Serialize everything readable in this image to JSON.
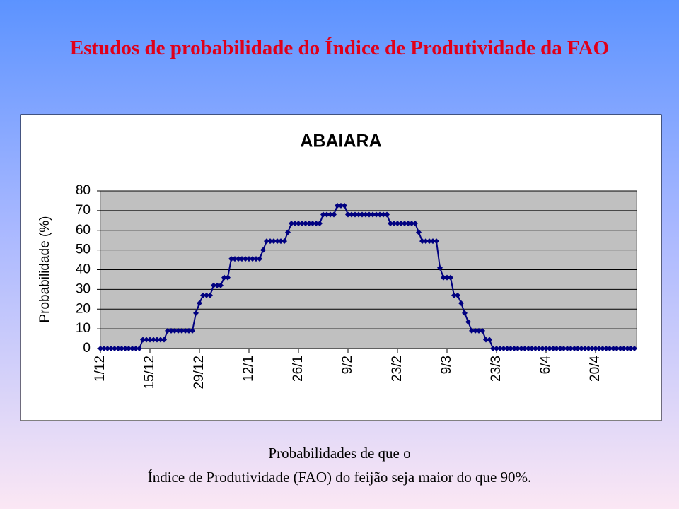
{
  "slide_title": "Estudos de probabilidade do Índice de Produtividade da FAO",
  "caption": [
    "Probabilidades de que o",
    "Índice de Produtividade (FAO) do feijão seja maior do que 90%."
  ],
  "chart_data": {
    "type": "line",
    "title": "ABAIARA",
    "y_label": "Probabilidade (%)",
    "categories": [
      "1/12",
      null,
      null,
      null,
      null,
      null,
      null,
      null,
      null,
      null,
      null,
      null,
      null,
      null,
      "15/12",
      null,
      null,
      null,
      null,
      null,
      null,
      null,
      null,
      null,
      null,
      null,
      null,
      null,
      "29/12",
      null,
      null,
      null,
      null,
      null,
      null,
      null,
      null,
      null,
      null,
      null,
      null,
      null,
      "12/1",
      null,
      null,
      null,
      null,
      null,
      null,
      null,
      null,
      null,
      null,
      null,
      null,
      null,
      "26/1",
      null,
      null,
      null,
      null,
      null,
      null,
      null,
      null,
      null,
      null,
      null,
      null,
      null,
      "9/2",
      null,
      null,
      null,
      null,
      null,
      null,
      null,
      null,
      null,
      null,
      null,
      null,
      null,
      "23/2",
      null,
      null,
      null,
      null,
      null,
      null,
      null,
      null,
      null,
      null,
      null,
      null,
      null,
      "9/3",
      null,
      null,
      null,
      null,
      null,
      null,
      null,
      null,
      null,
      null,
      null,
      null,
      null,
      "23/3",
      null,
      null,
      null,
      null,
      null,
      null,
      null,
      null,
      null,
      null,
      null,
      null,
      null,
      "6/4",
      null,
      null,
      null,
      null,
      null,
      null,
      null,
      null,
      null,
      null,
      null,
      null,
      null,
      "20/4",
      null,
      null,
      null,
      null,
      null,
      null,
      null,
      null,
      null,
      null,
      null
    ],
    "values": [
      0,
      0,
      0,
      0,
      0,
      0,
      0,
      0,
      0,
      0,
      0,
      0,
      4.5,
      4.5,
      4.5,
      4.5,
      4.5,
      4.5,
      4.5,
      9,
      9,
      9,
      9,
      9,
      9,
      9,
      9,
      18,
      23,
      27,
      27,
      27,
      32,
      32,
      32,
      36,
      36,
      45.5,
      45.5,
      45.5,
      45.5,
      45.5,
      45.5,
      45.5,
      45.5,
      45.5,
      50,
      54.5,
      54.5,
      54.5,
      54.5,
      54.5,
      54.5,
      59,
      63.5,
      63.5,
      63.5,
      63.5,
      63.5,
      63.5,
      63.5,
      63.5,
      63.5,
      68,
      68,
      68,
      68,
      72.5,
      72.5,
      72.5,
      68,
      68,
      68,
      68,
      68,
      68,
      68,
      68,
      68,
      68,
      68,
      68,
      63.5,
      63.5,
      63.5,
      63.5,
      63.5,
      63.5,
      63.5,
      63.5,
      59,
      54.5,
      54.5,
      54.5,
      54.5,
      54.5,
      41,
      36,
      36,
      36,
      27,
      27,
      23,
      18,
      13.5,
      9,
      9,
      9,
      9,
      4.5,
      4.5,
      0,
      0,
      0,
      0,
      0,
      0,
      0,
      0,
      0,
      0,
      0,
      0,
      0,
      0,
      0,
      0,
      0,
      0,
      0,
      0,
      0,
      0,
      0,
      0,
      0,
      0,
      0,
      0,
      0,
      0,
      0,
      0,
      0,
      0,
      0,
      0,
      0,
      0,
      0,
      0,
      0
    ],
    "color": "#000080",
    "ylim": [
      0,
      80
    ],
    "yticks": [
      0,
      10,
      20,
      30,
      40,
      50,
      60,
      70,
      80
    ],
    "grid": true
  }
}
